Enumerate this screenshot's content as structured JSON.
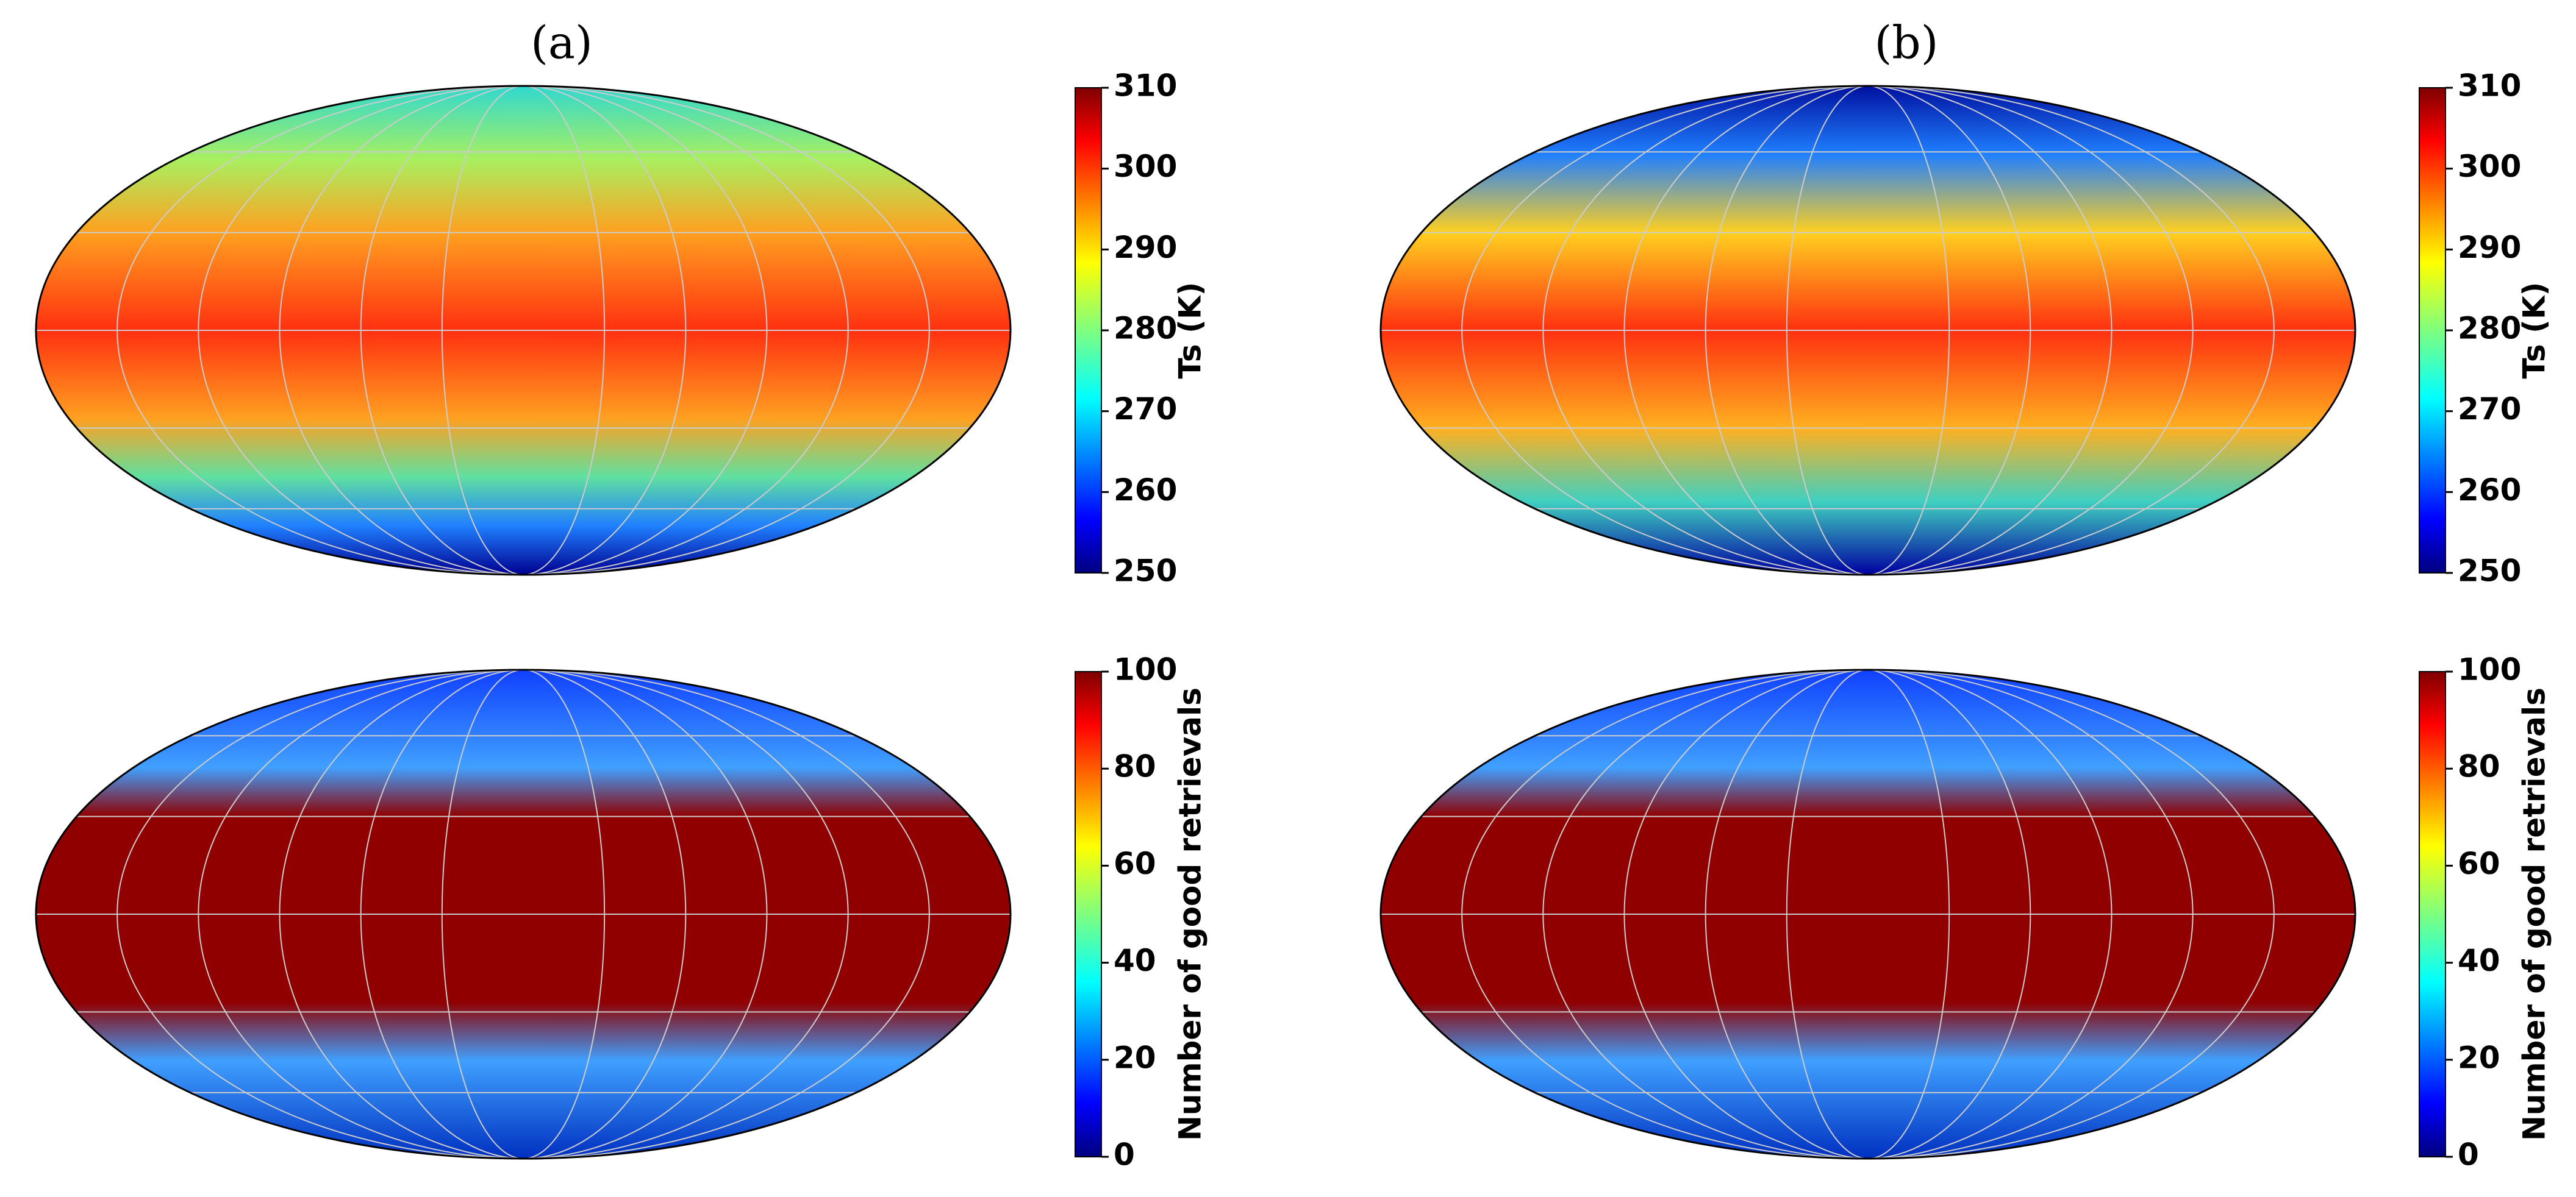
{
  "columns": [
    {
      "title": "(a)",
      "rows": [
        {
          "colorbar_label": "Ts (K)",
          "range": [
            250,
            310
          ],
          "ticks": [
            250,
            260,
            270,
            280,
            290,
            300,
            310
          ]
        },
        {
          "colorbar_label": "Number of good retrievals",
          "range": [
            0,
            100
          ],
          "ticks": [
            0,
            20,
            40,
            60,
            80,
            100
          ]
        }
      ]
    },
    {
      "title": "(b)",
      "rows": [
        {
          "colorbar_label": "Ts (K)",
          "range": [
            250,
            310
          ],
          "ticks": [
            250,
            260,
            270,
            280,
            290,
            300,
            310
          ]
        },
        {
          "colorbar_label": "Number of good retrievals",
          "range": [
            0,
            100
          ],
          "ticks": [
            0,
            20,
            40,
            60,
            80,
            100
          ]
        }
      ]
    }
  ]
}
